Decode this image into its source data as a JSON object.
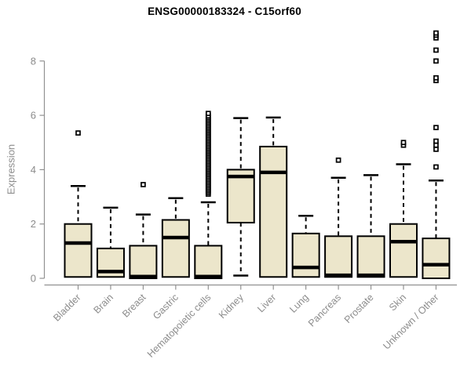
{
  "chart_data": {
    "type": "boxplot",
    "title": "ENSG00000183324 - C15orf60",
    "xlabel": "",
    "ylabel": "Expression",
    "yticks": [
      0,
      2,
      4,
      6,
      8
    ],
    "ylim": [
      0,
      9.3
    ],
    "grid": false,
    "legend": null,
    "categories": [
      "Bladder",
      "Brain",
      "Breast",
      "Gastric",
      "Hematopoietic cells",
      "Kidney",
      "Liver",
      "Lung",
      "Pancreas",
      "Prostate",
      "Skin",
      "Unknown / Other"
    ],
    "boxes": [
      {
        "category": "Bladder",
        "whisker_low": 0.05,
        "q1": 0.05,
        "median": 1.3,
        "q3": 2.0,
        "whisker_high": 3.4,
        "outliers": [
          5.35
        ]
      },
      {
        "category": "Brain",
        "whisker_low": 0.05,
        "q1": 0.05,
        "median": 0.25,
        "q3": 1.1,
        "whisker_high": 2.6,
        "outliers": []
      },
      {
        "category": "Breast",
        "whisker_low": 0.0,
        "q1": 0.0,
        "median": 0.05,
        "q3": 1.2,
        "whisker_high": 2.35,
        "outliers": [
          3.45
        ]
      },
      {
        "category": "Gastric",
        "whisker_low": 0.05,
        "q1": 0.05,
        "median": 1.5,
        "q3": 2.15,
        "whisker_high": 2.95,
        "outliers": []
      },
      {
        "category": "Hematopoietic cells",
        "whisker_low": 0.0,
        "q1": 0.0,
        "median": 0.05,
        "q3": 1.2,
        "whisker_high": 2.8,
        "outliers": [
          3.1,
          3.16,
          3.22,
          3.28,
          3.34,
          3.4,
          3.46,
          3.52,
          3.58,
          3.64,
          3.7,
          3.76,
          3.82,
          3.88,
          3.94,
          4.0,
          4.06,
          4.12,
          4.18,
          4.24,
          4.3,
          4.36,
          4.42,
          4.48,
          4.54,
          4.6,
          4.66,
          4.72,
          4.78,
          4.84,
          4.9,
          4.96,
          5.02,
          5.08,
          5.14,
          5.2,
          5.26,
          5.32,
          5.38,
          5.44,
          5.5,
          5.56,
          5.62,
          5.68,
          5.74,
          5.8,
          5.86,
          5.92,
          5.98,
          6.07
        ]
      },
      {
        "category": "Kidney",
        "whisker_low": 0.1,
        "q1": 2.05,
        "median": 3.75,
        "q3": 4.0,
        "whisker_high": 5.9,
        "outliers": []
      },
      {
        "category": "Liver",
        "whisker_low": 0.05,
        "q1": 0.05,
        "median": 3.9,
        "q3": 4.85,
        "whisker_high": 5.92,
        "outliers": []
      },
      {
        "category": "Lung",
        "whisker_low": 0.05,
        "q1": 0.05,
        "median": 0.4,
        "q3": 1.65,
        "whisker_high": 2.3,
        "outliers": []
      },
      {
        "category": "Pancreas",
        "whisker_low": 0.05,
        "q1": 0.05,
        "median": 0.08,
        "q3": 1.55,
        "whisker_high": 3.7,
        "outliers": [
          4.35
        ]
      },
      {
        "category": "Prostate",
        "whisker_low": 0.05,
        "q1": 0.05,
        "median": 0.08,
        "q3": 1.55,
        "whisker_high": 3.8,
        "outliers": []
      },
      {
        "category": "Skin",
        "whisker_low": 0.05,
        "q1": 0.05,
        "median": 1.35,
        "q3": 2.0,
        "whisker_high": 4.2,
        "outliers": [
          4.9,
          5.0
        ]
      },
      {
        "category": "Unknown / Other",
        "whisker_low": 0.0,
        "q1": 0.0,
        "median": 0.5,
        "q3": 1.47,
        "whisker_high": 3.6,
        "outliers": [
          4.1,
          4.75,
          4.9,
          5.05,
          5.55,
          7.28,
          7.38,
          8.0,
          8.4,
          8.85,
          8.95,
          9.03
        ]
      }
    ],
    "colors": {
      "box_fill": "#ece6cb",
      "box_stroke": "#000000",
      "median": "#000000",
      "whisker": "#000000",
      "outlier_stroke": "#000000",
      "axis": "#919191",
      "text": "#8c8c8c",
      "title": "#000000",
      "background": "#ffffff"
    }
  }
}
